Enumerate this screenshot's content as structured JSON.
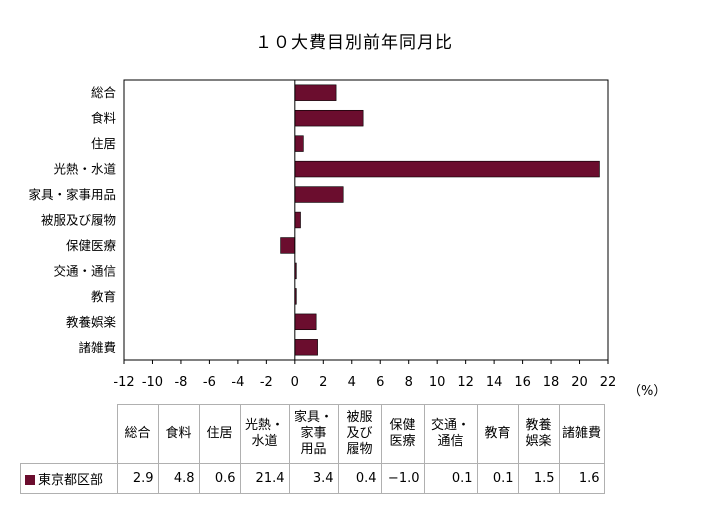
{
  "chart_data": {
    "type": "bar",
    "orientation": "horizontal",
    "title": "１０大費目別前年同月比",
    "unit_label": "（%）",
    "categories": [
      "総合",
      "食料",
      "住居",
      "光熱・水道",
      "家具・家事用品",
      "被服及び履物",
      "保健医療",
      "交通・通信",
      "教育",
      "教養娯楽",
      "諸雑費"
    ],
    "table_headers": [
      [
        "総合"
      ],
      [
        "食料"
      ],
      [
        "住居"
      ],
      [
        "光熱・",
        "水道"
      ],
      [
        "家具・",
        "家事",
        "用品"
      ],
      [
        "被服",
        "及び",
        "履物"
      ],
      [
        "保健",
        "医療"
      ],
      [
        "交通・",
        "通信"
      ],
      [
        "教育"
      ],
      [
        "教養",
        "娯楽"
      ],
      [
        "諸雑費"
      ]
    ],
    "series": [
      {
        "name": "東京都区部",
        "color": "#6b0d2e",
        "values": [
          2.9,
          4.8,
          0.6,
          21.4,
          3.4,
          0.4,
          -1.0,
          0.1,
          0.1,
          1.5,
          1.6
        ],
        "value_labels": [
          "2.9",
          "4.8",
          "0.6",
          "21.4",
          "3.4",
          "0.4",
          "−1.0",
          "0.1",
          "0.1",
          "1.5",
          "1.6"
        ]
      }
    ],
    "xlim": [
      -12,
      22
    ],
    "xticks": [
      -12,
      -10,
      -8,
      -6,
      -4,
      -2,
      0,
      2,
      4,
      6,
      8,
      10,
      12,
      14,
      16,
      18,
      20,
      22
    ],
    "grid": false,
    "legend": "table-row"
  }
}
